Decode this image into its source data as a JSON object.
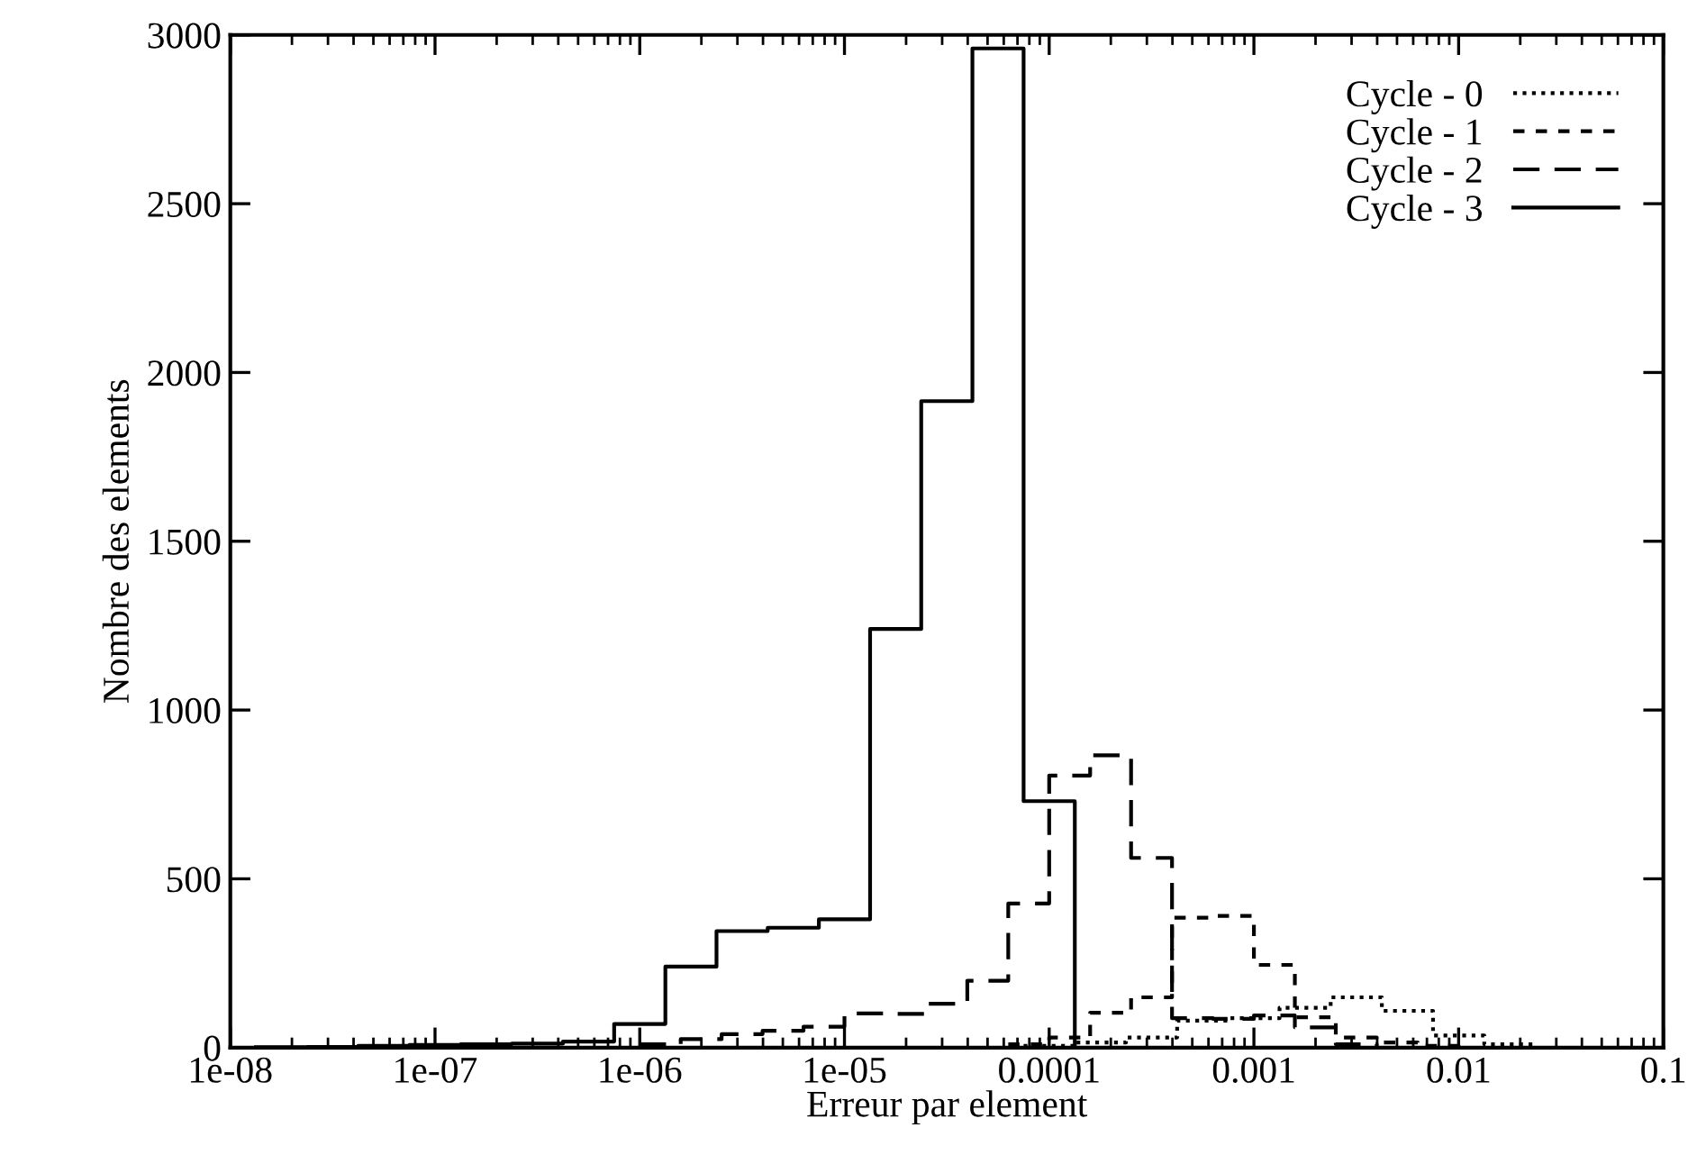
{
  "chart_data": {
    "type": "step",
    "xlabel": "Erreur par element",
    "ylabel": "Nombre des elements",
    "log": "x",
    "xlim": [
      1e-08,
      0.1
    ],
    "ylim": [
      0,
      3000
    ],
    "xticks": [
      {
        "value": 1e-08,
        "label": "1e-08"
      },
      {
        "value": 1e-07,
        "label": "1e-07"
      },
      {
        "value": 1e-06,
        "label": "1e-06"
      },
      {
        "value": 1e-05,
        "label": "1e-05"
      },
      {
        "value": 0.0001,
        "label": "0.0001"
      },
      {
        "value": 0.001,
        "label": "0.001"
      },
      {
        "value": 0.01,
        "label": "0.01"
      },
      {
        "value": 0.1,
        "label": "0.1"
      }
    ],
    "yticks": [
      0,
      500,
      1000,
      1500,
      2000,
      2500,
      3000
    ],
    "legend": "top right",
    "series": [
      {
        "name": "Cycle - 0",
        "color": "#000000",
        "line_style": "dotted",
        "x": [
          7.499e-05,
          0.0001334,
          0.0002371,
          0.0004217,
          0.0007499,
          0.001334,
          0.002371,
          0.004217,
          0.007499,
          0.01334,
          0.02371
        ],
        "values": [
          5,
          15,
          30,
          80,
          87,
          118,
          149,
          109,
          36,
          10,
          0
        ]
      },
      {
        "name": "Cycle - 1",
        "color": "#000000",
        "line_style": "dashed",
        "x": [
          6.31e-05,
          0.0001,
          0.0001585,
          0.0002512,
          0.0003981,
          0.000631,
          0.001,
          0.001585,
          0.002512,
          0.003981,
          0.00631,
          0.01
        ],
        "values": [
          10,
          30,
          103,
          149,
          385,
          390,
          245,
          90,
          30,
          15,
          5,
          0
        ]
      },
      {
        "name": "Cycle - 2",
        "color": "#000000",
        "line_style": "longdashed",
        "x": [
          1e-06,
          1.585e-06,
          2.512e-06,
          3.981e-06,
          6.31e-06,
          1e-05,
          1.585e-05,
          2.512e-05,
          3.981e-05,
          6.31e-05,
          0.0001,
          0.0001585,
          0.0002512,
          0.0003981,
          0.000631,
          0.001,
          0.001585,
          0.002512,
          0.003981
        ],
        "values": [
          10,
          25,
          40,
          50,
          62,
          101,
          100,
          130,
          198,
          427,
          806,
          866,
          562,
          87,
          85,
          95,
          60,
          10,
          0
        ]
      },
      {
        "name": "Cycle - 3",
        "color": "#000000",
        "line_style": "solid",
        "x": [
          1.334e-08,
          2.371e-08,
          4.217e-08,
          7.499e-08,
          1.334e-07,
          2.371e-07,
          4.217e-07,
          7.499e-07,
          1.334e-06,
          2.371e-06,
          4.217e-06,
          7.499e-06,
          1.334e-05,
          2.371e-05,
          4.217e-05,
          7.499e-05,
          0.0001334
        ],
        "values": [
          1,
          2,
          5,
          8,
          10,
          12,
          18,
          70,
          240,
          345,
          355,
          380,
          1240,
          1915,
          2960,
          730,
          0
        ]
      }
    ]
  }
}
